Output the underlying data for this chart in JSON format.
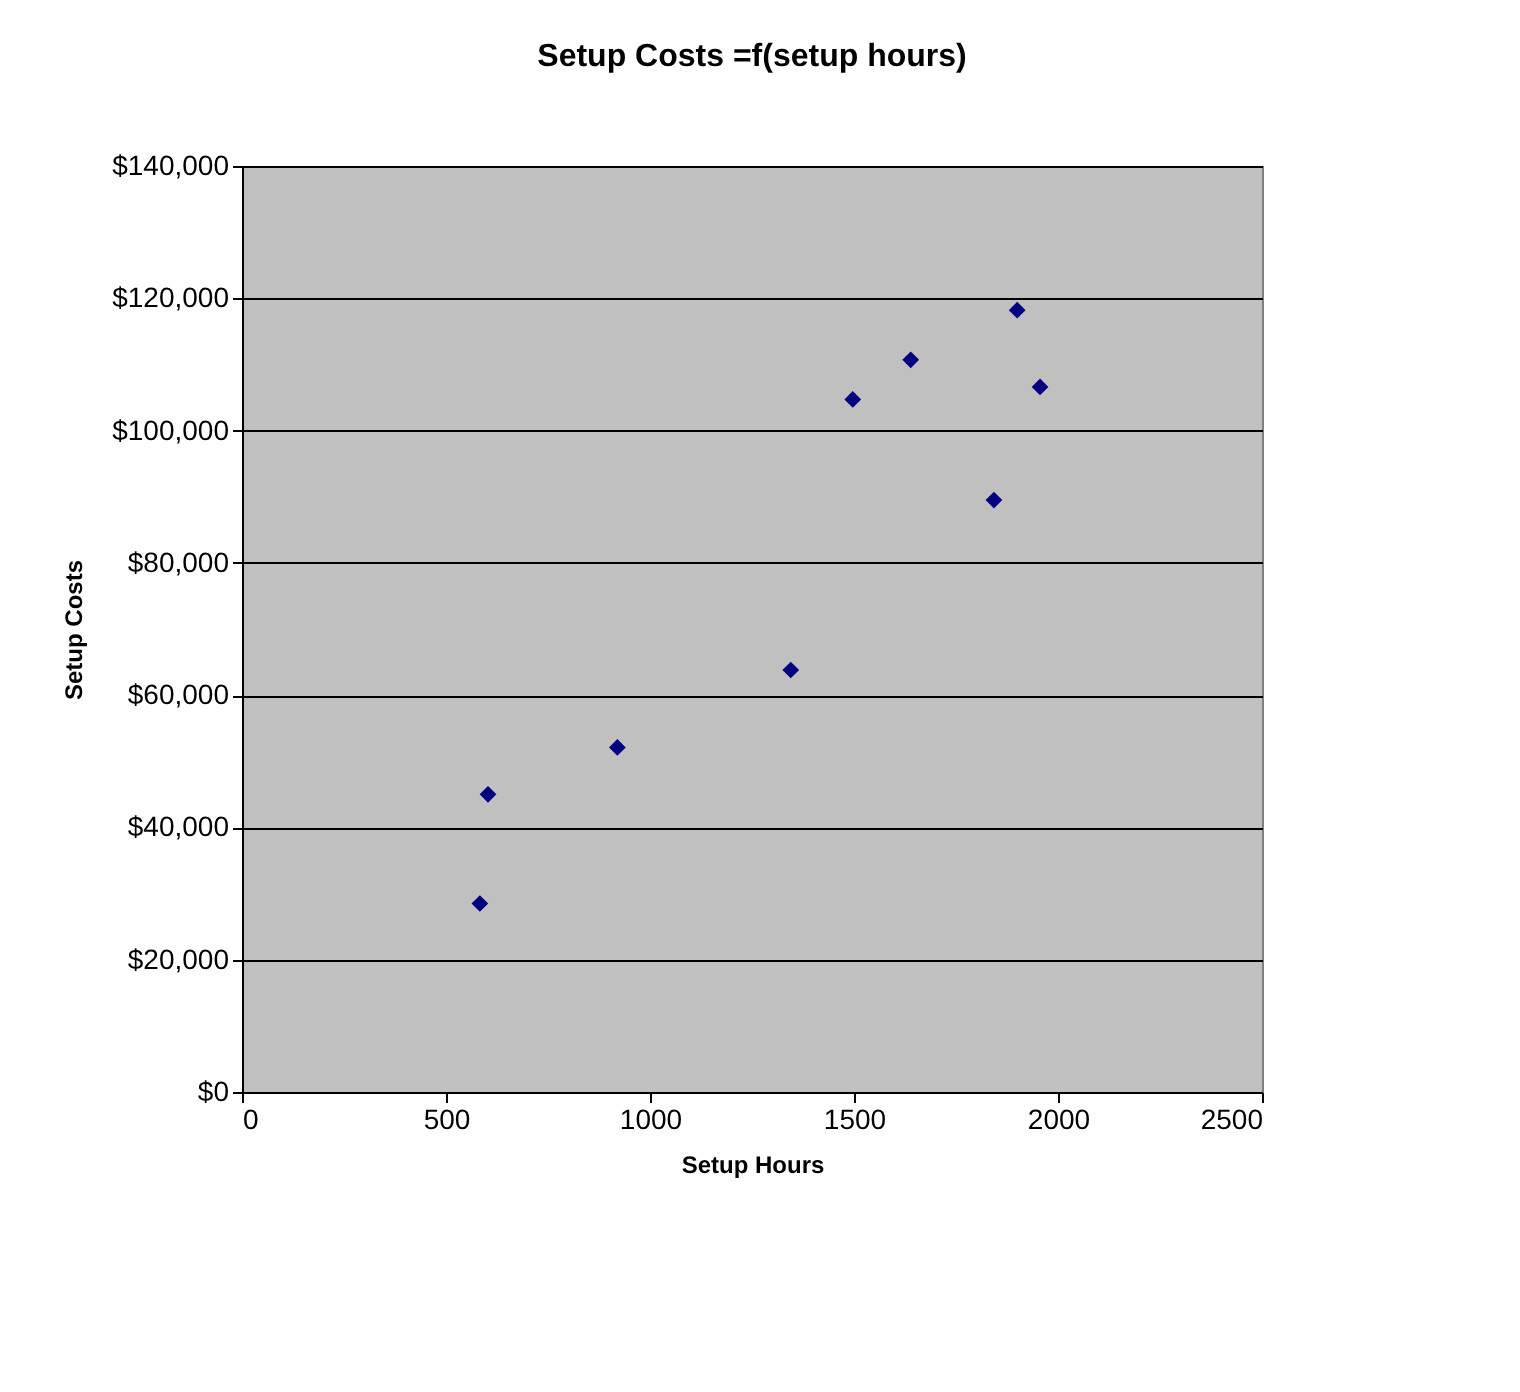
{
  "chart_data": {
    "type": "scatter",
    "title": "Setup Costs =f(setup hours)",
    "xlabel": "Setup Hours",
    "ylabel": "Setup Costs",
    "x": [
      583,
      603,
      920,
      1345,
      1497,
      1639,
      1843,
      1900,
      1956
    ],
    "series": [
      {
        "color": "#000080",
        "values": [
          28500,
          45000,
          52100,
          63800,
          104700,
          110700,
          89500,
          118200,
          106600
        ]
      }
    ],
    "xlim": [
      0,
      2500
    ],
    "xticks": [
      0,
      500,
      1000,
      1500,
      2000,
      2500
    ],
    "ylim": [
      0,
      140000
    ],
    "yticks": [
      {
        "value": 0,
        "label": "$0"
      },
      {
        "value": 20000,
        "label": "$20,000"
      },
      {
        "value": 40000,
        "label": "$40,000"
      },
      {
        "value": 60000,
        "label": "$60,000"
      },
      {
        "value": 80000,
        "label": "$80,000"
      },
      {
        "value": 100000,
        "label": "$100,000"
      },
      {
        "value": 120000,
        "label": "$120,000"
      },
      {
        "value": 140000,
        "label": "$140,000"
      }
    ],
    "grid": "y",
    "marker": "diamond"
  }
}
